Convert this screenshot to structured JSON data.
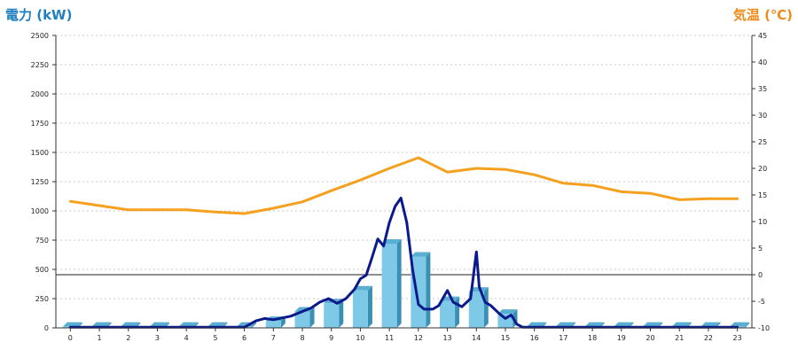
{
  "left_axis_title": "電力 (kW)",
  "right_axis_title": "気温 (℃)",
  "chart_data": {
    "type": "bar",
    "categories": [
      "0",
      "1",
      "2",
      "3",
      "4",
      "5",
      "6",
      "7",
      "8",
      "9",
      "10",
      "11",
      "12",
      "13",
      "14",
      "15",
      "16",
      "17",
      "18",
      "19",
      "20",
      "21",
      "22",
      "23"
    ],
    "ylim_left": [
      0,
      2500
    ],
    "yticks_left": [
      0,
      250,
      500,
      750,
      1000,
      1250,
      1500,
      1750,
      2000,
      2250,
      2500
    ],
    "ylim_right": [
      -10,
      45
    ],
    "yticks_right": [
      -10,
      -5,
      0,
      5,
      10,
      15,
      20,
      25,
      30,
      35,
      40,
      45
    ],
    "grid": true,
    "reference_line_right": 0,
    "series": [
      {
        "kind": "bar",
        "axis": "left",
        "color": "#7ec8e8",
        "values": [
          10,
          10,
          10,
          10,
          10,
          10,
          10,
          60,
          140,
          210,
          320,
          720,
          610,
          230,
          310,
          120,
          10,
          10,
          10,
          10,
          10,
          10,
          10,
          10
        ]
      },
      {
        "kind": "line",
        "axis": "right",
        "color": "#f5a01e",
        "values": [
          13.8,
          13,
          12.2,
          12.2,
          12.2,
          11.8,
          11.5,
          12.5,
          13.7,
          15.8,
          17.8,
          20,
          22,
          19.3,
          20,
          19.8,
          18.8,
          17.2,
          16.8,
          15.6,
          15.3,
          14.1,
          14.3,
          14.3
        ]
      },
      {
        "kind": "line",
        "axis": "left",
        "color": "#0a1a8c",
        "x": [
          0,
          1,
          2,
          3,
          4,
          5,
          6,
          6.4,
          6.7,
          7,
          7.3,
          7.6,
          8,
          8.3,
          8.6,
          8.9,
          9.2,
          9.5,
          9.8,
          10,
          10.2,
          10.4,
          10.6,
          10.8,
          11,
          11.2,
          11.4,
          11.6,
          11.8,
          12,
          12.2,
          12.5,
          12.7,
          13,
          13.2,
          13.5,
          13.8,
          14,
          14.1,
          14.3,
          14.5,
          14.8,
          15,
          15.2,
          15.4,
          15.6,
          15.8,
          16,
          17,
          18,
          19,
          20,
          21,
          22,
          23
        ],
        "values": [
          5,
          5,
          5,
          5,
          5,
          5,
          5,
          60,
          80,
          70,
          85,
          100,
          140,
          170,
          220,
          250,
          210,
          250,
          330,
          420,
          450,
          600,
          760,
          700,
          900,
          1040,
          1110,
          900,
          500,
          200,
          160,
          160,
          190,
          320,
          220,
          180,
          250,
          650,
          350,
          220,
          190,
          120,
          80,
          110,
          30,
          5,
          5,
          5,
          5,
          5,
          5,
          5,
          5,
          5,
          5
        ]
      }
    ]
  }
}
